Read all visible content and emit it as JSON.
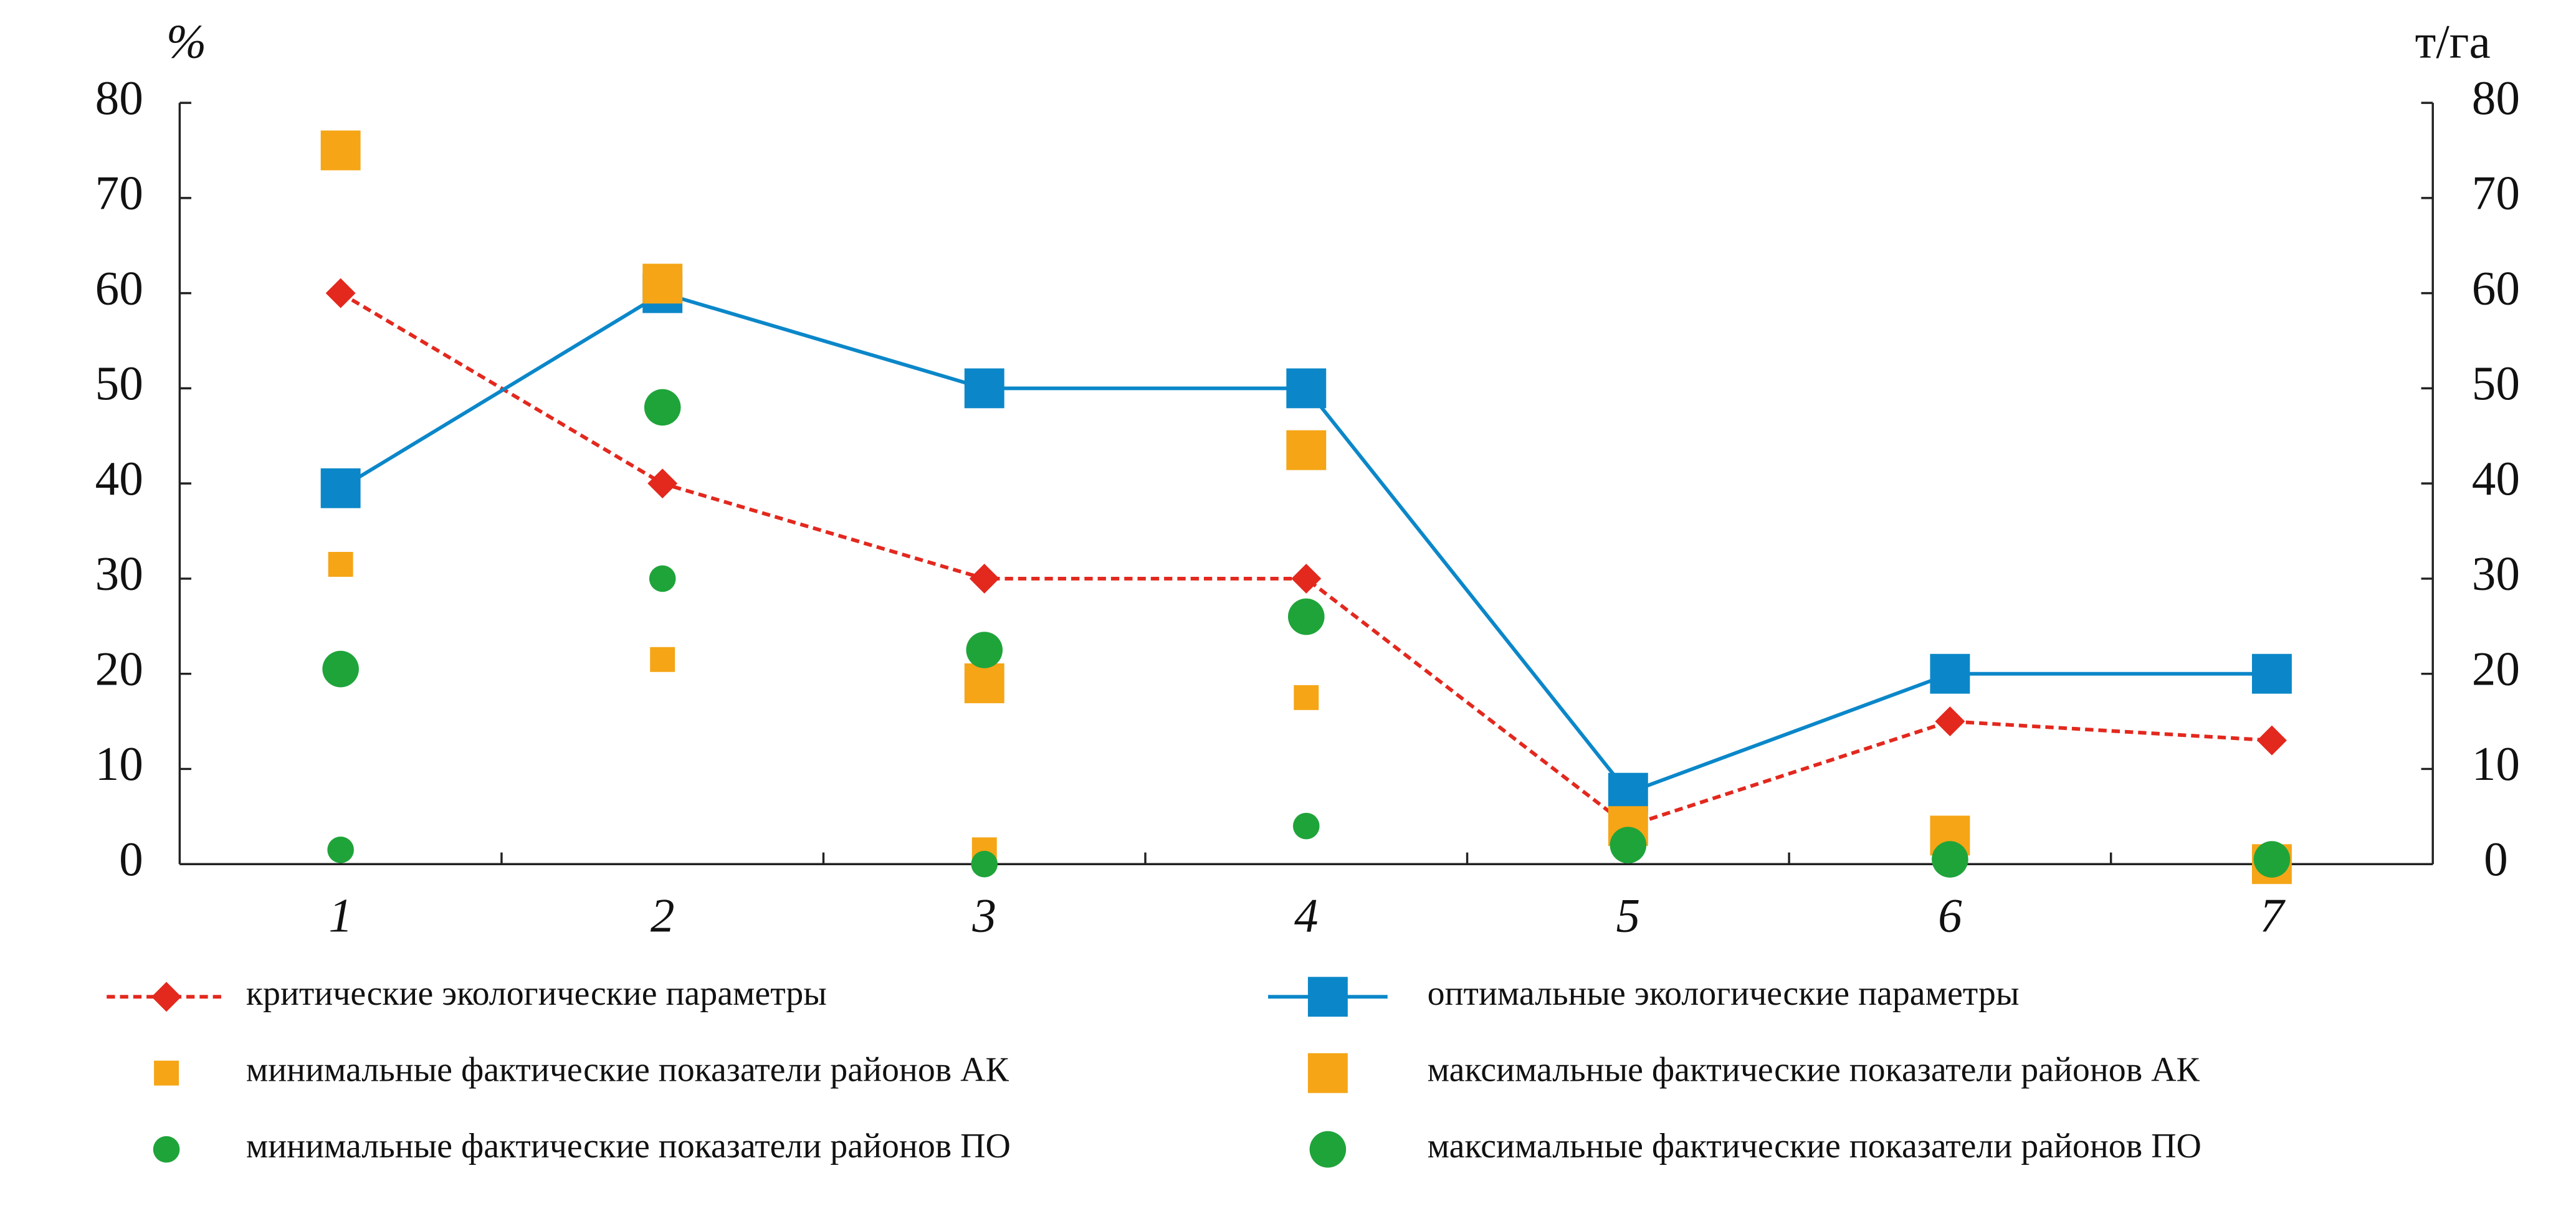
{
  "chart_data": {
    "type": "line",
    "ylabel": "%",
    "y2label": "т/га",
    "categories": [
      "1",
      "2",
      "3",
      "4",
      "5",
      "6",
      "7"
    ],
    "ylim": [
      0,
      80
    ],
    "yticks": [
      0,
      10,
      20,
      30,
      40,
      50,
      60,
      70,
      80
    ],
    "y2lim": [
      0,
      80
    ],
    "y2ticks": [
      0,
      10,
      20,
      30,
      40,
      50,
      60,
      70,
      80
    ],
    "grid": false,
    "series": [
      {
        "name": "критические экологические параметры",
        "color": "#e3281e",
        "marker": "diamond",
        "size": "small",
        "line": "dashed",
        "values": [
          60,
          40,
          30,
          30,
          4,
          15,
          13
        ]
      },
      {
        "name": "оптимальные экологические параметры",
        "color": "#0b87c9",
        "marker": "square",
        "size": "large",
        "line": "solid",
        "values": [
          39.5,
          60,
          50,
          50,
          7.5,
          20,
          20
        ]
      },
      {
        "name": "минимальные фактические показатели районов АК",
        "color": "#f5a516",
        "marker": "square",
        "size": "small",
        "line": "none",
        "values": [
          31.5,
          21.5,
          1.5,
          17.5,
          null,
          null,
          null
        ]
      },
      {
        "name": "максимальные фактические показатели районов АК",
        "color": "#f5a516",
        "marker": "square",
        "size": "large",
        "line": "none",
        "values": [
          75,
          61,
          19,
          43.5,
          4,
          3,
          0
        ]
      },
      {
        "name": "минимальные фактические показатели районов ПО",
        "color": "#1fa43a",
        "marker": "circle",
        "size": "small",
        "line": "none",
        "values": [
          1.5,
          30,
          0,
          4,
          null,
          null,
          null
        ]
      },
      {
        "name": "максимальные фактические показатели районов ПО",
        "color": "#1fa43a",
        "marker": "circle",
        "size": "large",
        "line": "none",
        "values": [
          20.5,
          48,
          22.5,
          26,
          2,
          0.5,
          0.5
        ]
      }
    ]
  }
}
